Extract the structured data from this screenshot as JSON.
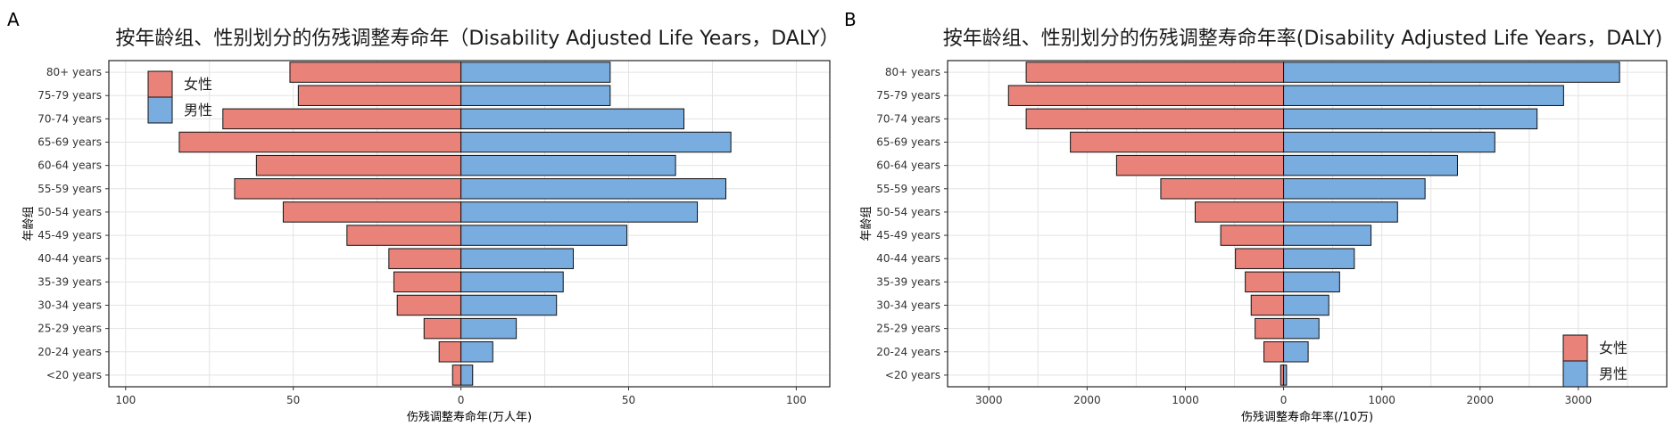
{
  "panels": [
    {
      "letter": "A",
      "title": "按年龄组、性别划分的伤残调整寿命年（Disability Adjusted Life Years，DALY）",
      "xlabel": "伤残调整寿命年(万人年)",
      "ylabel": "年龄组"
    },
    {
      "letter": "B",
      "title": "按年龄组、性别划分的伤残调整寿命年率(Disability Adjusted Life Years，DALY)",
      "xlabel": "伤残调整寿命年率(/10万)",
      "ylabel": "年龄组"
    }
  ],
  "chart_data": [
    {
      "type": "bar",
      "orientation": "horizontal-butterfly",
      "title": "按年龄组、性别划分的伤残调整寿命年（Disability Adjusted Life Years，DALY）",
      "xlabel": "伤残调整寿命年(万人年)",
      "ylabel": "年龄组",
      "categories": [
        "80+ years",
        "75-79 years",
        "70-74 years",
        "65-69 years",
        "60-64 years",
        "55-59 years",
        "50-54 years",
        "45-49 years",
        "40-44 years",
        "35-39 years",
        "30-34 years",
        "25-29 years",
        "20-24 years",
        "<20 years"
      ],
      "series": [
        {
          "name": "女性",
          "color": "#E9837A",
          "side": "left",
          "values": [
            51,
            48.5,
            71,
            84,
            61,
            67.5,
            53,
            34,
            21.5,
            20,
            19,
            11,
            6.5,
            2.5
          ]
        },
        {
          "name": "男性",
          "color": "#79ACDF",
          "side": "right",
          "values": [
            44.5,
            44.5,
            66.5,
            80.5,
            64,
            79,
            70.5,
            49.5,
            33.5,
            30.5,
            28.5,
            16.5,
            9.5,
            3.5
          ]
        }
      ],
      "xlim": [
        -105,
        110
      ],
      "xticks": [
        -100,
        -50,
        0,
        50,
        100
      ],
      "xtick_labels": [
        "100",
        "50",
        "0",
        "50",
        "100"
      ],
      "grid": true,
      "legend_position": "top-left"
    },
    {
      "type": "bar",
      "orientation": "horizontal-butterfly",
      "title": "按年龄组、性别划分的伤残调整寿命年率(Disability Adjusted Life Years，DALY)",
      "xlabel": "伤残调整寿命年率(/10万)",
      "ylabel": "年龄组",
      "categories": [
        "80+ years",
        "75-79 years",
        "70-74 years",
        "65-69 years",
        "60-64 years",
        "55-59 years",
        "50-54 years",
        "45-49 years",
        "40-44 years",
        "35-39 years",
        "30-34 years",
        "25-29 years",
        "20-24 years",
        "<20 years"
      ],
      "series": [
        {
          "name": "女性",
          "color": "#E9837A",
          "side": "left",
          "values": [
            2620,
            2800,
            2620,
            2170,
            1700,
            1250,
            900,
            640,
            490,
            390,
            330,
            290,
            200,
            30
          ]
        },
        {
          "name": "男性",
          "color": "#79ACDF",
          "side": "right",
          "values": [
            3420,
            2850,
            2580,
            2150,
            1770,
            1440,
            1160,
            890,
            720,
            570,
            460,
            360,
            250,
            30
          ]
        }
      ],
      "xlim": [
        -3420,
        3900
      ],
      "xticks": [
        -3000,
        -2000,
        -1000,
        0,
        1000,
        2000,
        3000
      ],
      "xtick_labels": [
        "3000",
        "2000",
        "1000",
        "0",
        "1000",
        "2000",
        "3000"
      ],
      "grid": true,
      "legend_position": "bottom-right"
    }
  ]
}
